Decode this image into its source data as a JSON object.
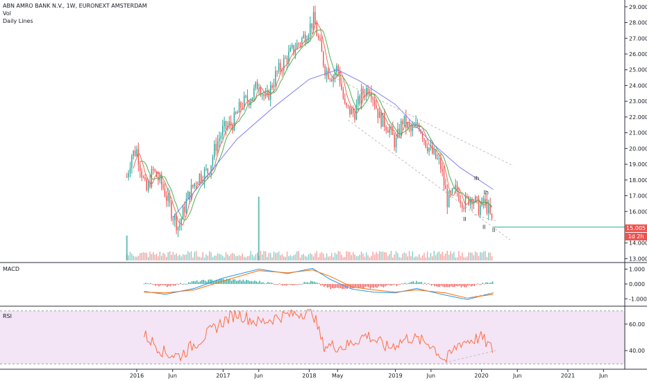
{
  "header": {
    "symbol_line": "ABN AMRO BANK N.V., 1W, EURONEXT AMSTERDAM",
    "vol_label": "Vol",
    "ma_label": "Daily Lines"
  },
  "badges": {
    "last_price": "15.005",
    "countdown": "1d 2h",
    "last_color": "#ef5350",
    "countdown_color": "#ef5350"
  },
  "panes": {
    "macd_label": "MACD",
    "rsi_label": "RSI"
  },
  "colors": {
    "up": "#26a69a",
    "down": "#ef5350",
    "ma_fast": "#ef6c5a",
    "ma_mid": "#4caf50",
    "ma_slow": "#7e7ef0",
    "macd_line": "#2196f3",
    "signal_line": "#ff6d00",
    "rsi_line": "#ff6d42",
    "rsi_band": "#f3e5f5",
    "trend": "#bdbdbd"
  },
  "chart_data": [
    {
      "type": "candlestick",
      "title": "ABN AMRO BANK N.V., 1W, EURONEXT AMSTERDAM",
      "y_ticks": [
        29,
        28,
        27,
        26,
        25,
        24,
        23,
        22,
        21,
        20,
        19,
        18,
        17,
        16,
        15,
        14,
        13
      ],
      "y_tick_labels": [
        "29.000",
        "28.000",
        "27.000",
        "26.000",
        "25.000",
        "24.000",
        "23.000",
        "22.000",
        "21.000",
        "20.000",
        "19.000",
        "18.000",
        "17.000",
        "16.000",
        "15.000",
        "14.000",
        "13.000"
      ],
      "ylim": [
        12.8,
        29.3
      ],
      "x_labels": [
        "2016",
        "Jun",
        "2017",
        "Jun",
        "2018",
        "May",
        "2019",
        "Jun",
        "2020",
        "Jun",
        "2021",
        "Jun"
      ],
      "x_label_dates": [
        "2016-01-01",
        "2016-06-01",
        "2017-01-01",
        "2017-06-01",
        "2018-01-01",
        "2018-05-01",
        "2019-01-01",
        "2019-06-01",
        "2020-01-01",
        "2020-06-01",
        "2021-01-01",
        "2021-06-01"
      ],
      "price_path": [
        [
          "2015-11-20",
          18.2
        ],
        [
          "2015-12-10",
          19.6
        ],
        [
          "2016-01-01",
          19.9
        ],
        [
          "2016-02-10",
          17.2
        ],
        [
          "2016-03-10",
          18.6
        ],
        [
          "2016-04-20",
          17.6
        ],
        [
          "2016-06-01",
          15.8
        ],
        [
          "2016-06-27",
          15.0
        ],
        [
          "2016-08-01",
          16.8
        ],
        [
          "2016-09-15",
          18.2
        ],
        [
          "2016-11-01",
          18.6
        ],
        [
          "2016-12-01",
          20.2
        ],
        [
          "2017-01-01",
          21.2
        ],
        [
          "2017-02-10",
          21.6
        ],
        [
          "2017-03-20",
          22.8
        ],
        [
          "2017-05-01",
          23.3
        ],
        [
          "2017-06-01",
          24.2
        ],
        [
          "2017-07-01",
          23.0
        ],
        [
          "2017-08-10",
          24.6
        ],
        [
          "2017-09-20",
          25.6
        ],
        [
          "2017-11-01",
          26.4
        ],
        [
          "2017-12-15",
          27.2
        ],
        [
          "2018-01-20",
          28.2
        ],
        [
          "2018-02-10",
          26.8
        ],
        [
          "2018-03-10",
          25.0
        ],
        [
          "2018-04-10",
          24.6
        ],
        [
          "2018-05-01",
          25.2
        ],
        [
          "2018-06-01",
          22.6
        ],
        [
          "2018-07-10",
          22.2
        ],
        [
          "2018-08-10",
          23.4
        ],
        [
          "2018-09-15",
          24.0
        ],
        [
          "2018-10-25",
          22.0
        ],
        [
          "2018-12-01",
          21.4
        ],
        [
          "2019-01-01",
          20.3
        ],
        [
          "2019-02-01",
          21.8
        ],
        [
          "2019-03-10",
          21.0
        ],
        [
          "2019-04-10",
          21.6
        ],
        [
          "2019-05-10",
          20.4
        ],
        [
          "2019-06-10",
          19.6
        ],
        [
          "2019-07-10",
          19.0
        ],
        [
          "2019-08-10",
          16.6
        ],
        [
          "2019-09-15",
          17.4
        ],
        [
          "2019-10-20",
          16.5
        ],
        [
          "2019-11-20",
          17.0
        ],
        [
          "2019-12-20",
          16.2
        ],
        [
          "2020-01-15",
          16.6
        ],
        [
          "2020-02-01",
          16.0
        ],
        [
          "2020-02-20",
          15.0
        ]
      ],
      "volume_spike": [
        "2017-06-01",
        "large"
      ],
      "ma_slow_path": [
        [
          "2016-06-01",
          15.6
        ],
        [
          "2016-10-01",
          17.8
        ],
        [
          "2017-03-01",
          20.6
        ],
        [
          "2017-08-01",
          22.6
        ],
        [
          "2018-01-01",
          24.4
        ],
        [
          "2018-05-01",
          25.0
        ],
        [
          "2018-08-01",
          24.3
        ],
        [
          "2019-01-01",
          22.8
        ],
        [
          "2019-06-01",
          20.4
        ],
        [
          "2019-10-01",
          18.8
        ],
        [
          "2020-02-20",
          17.4
        ]
      ],
      "trendlines": [
        [
          [
            "2018-05-01",
            24.4
          ],
          [
            "2020-05-15",
            18.9
          ]
        ],
        [
          [
            "2018-06-15",
            21.8
          ],
          [
            "2020-05-01",
            14.2
          ]
        ],
        [
          [
            "2019-12-01",
            15.8
          ],
          [
            "2020-03-01",
            15.4
          ]
        ]
      ],
      "annotations": [
        "lh",
        "lh",
        "ll",
        "ll",
        "ll"
      ]
    },
    {
      "type": "line",
      "title": "MACD",
      "y_ticks": [
        1,
        0,
        -1
      ],
      "y_tick_labels": [
        "1.000",
        "0.000",
        "-1.000"
      ],
      "ylim": [
        -1.45,
        1.35
      ],
      "series": [
        {
          "values": [
            [
              "2016-02-01",
              -0.5
            ],
            [
              "2016-05-01",
              -0.7
            ],
            [
              "2016-09-01",
              -0.3
            ],
            [
              "2017-01-01",
              0.4
            ],
            [
              "2017-06-01",
              1.0
            ],
            [
              "2017-10-01",
              0.7
            ],
            [
              "2018-01-15",
              1.05
            ],
            [
              "2018-04-01",
              0.3
            ],
            [
              "2018-07-01",
              -0.35
            ],
            [
              "2018-10-01",
              -0.55
            ],
            [
              "2019-01-01",
              -0.6
            ],
            [
              "2019-04-01",
              -0.3
            ],
            [
              "2019-08-01",
              -0.75
            ],
            [
              "2019-11-01",
              -1.05
            ],
            [
              "2020-02-20",
              -0.6
            ]
          ]
        },
        {
          "values": [
            [
              "2016-02-01",
              -0.55
            ],
            [
              "2016-05-01",
              -0.6
            ],
            [
              "2016-09-01",
              -0.4
            ],
            [
              "2017-01-01",
              0.2
            ],
            [
              "2017-06-01",
              0.9
            ],
            [
              "2017-10-01",
              0.75
            ],
            [
              "2018-01-15",
              0.95
            ],
            [
              "2018-04-01",
              0.5
            ],
            [
              "2018-07-01",
              -0.2
            ],
            [
              "2018-10-01",
              -0.4
            ],
            [
              "2019-01-01",
              -0.55
            ],
            [
              "2019-04-01",
              -0.4
            ],
            [
              "2019-08-01",
              -0.6
            ],
            [
              "2019-11-01",
              -0.95
            ],
            [
              "2020-02-20",
              -0.7
            ]
          ]
        }
      ]
    },
    {
      "type": "line",
      "title": "RSI",
      "y_ticks": [
        60,
        40
      ],
      "y_tick_labels": [
        "60.00",
        "40.00"
      ],
      "ylim": [
        27,
        73
      ],
      "band": [
        30,
        70
      ],
      "series": [
        {
          "values": [
            [
              "2016-02-01",
              52
            ],
            [
              "2016-05-01",
              38
            ],
            [
              "2016-07-01",
              36
            ],
            [
              "2017-01-01",
              62
            ],
            [
              "2017-03-01",
              68
            ],
            [
              "2017-06-01",
              61
            ],
            [
              "2017-09-01",
              66
            ],
            [
              "2018-01-15",
              70
            ],
            [
              "2018-03-01",
              44
            ],
            [
              "2018-06-01",
              43
            ],
            [
              "2018-09-01",
              52
            ],
            [
              "2018-12-01",
              42
            ],
            [
              "2019-03-01",
              50
            ],
            [
              "2019-06-01",
              45
            ],
            [
              "2019-08-01",
              32
            ],
            [
              "2019-10-01",
              46
            ],
            [
              "2020-01-01",
              50
            ],
            [
              "2020-02-20",
              40
            ]
          ]
        }
      ]
    }
  ]
}
